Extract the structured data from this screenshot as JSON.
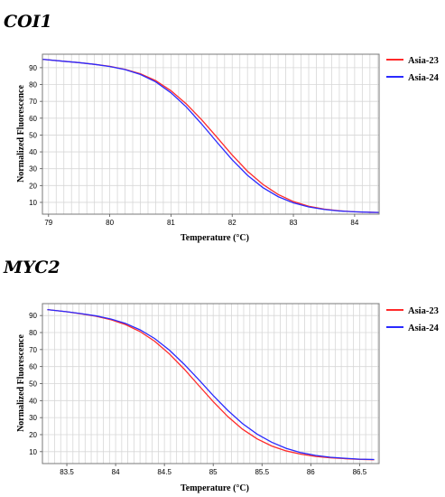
{
  "chart_data": [
    {
      "type": "line",
      "title": "COI1",
      "xlabel": "Temperature (°C)",
      "ylabel": "Normalized Fluorescence",
      "xlim": [
        78.9,
        84.4
      ],
      "ylim": [
        3,
        98
      ],
      "x_ticks": [
        79,
        80,
        81,
        82,
        83,
        84
      ],
      "x_tick_labels": [
        "79",
        "80",
        "81",
        "82",
        "83",
        "84"
      ],
      "y_ticks": [
        10,
        20,
        30,
        40,
        50,
        60,
        70,
        80,
        90
      ],
      "y_tick_labels": [
        "10",
        "20",
        "30",
        "40",
        "50",
        "60",
        "70",
        "80",
        "90"
      ],
      "grid": true,
      "legend_position": "right",
      "series": [
        {
          "name": "Asia-23",
          "color": "#ff2a2a",
          "x": [
            78.9,
            79.25,
            79.5,
            79.75,
            80.0,
            80.25,
            80.5,
            80.75,
            81.0,
            81.25,
            81.5,
            81.75,
            82.0,
            82.25,
            82.5,
            82.75,
            83.0,
            83.25,
            83.5,
            83.75,
            84.0,
            84.25,
            84.4
          ],
          "y": [
            95.0,
            93.8,
            93.0,
            92.0,
            90.8,
            89.0,
            86.4,
            82.3,
            76.3,
            68.5,
            59.1,
            48.7,
            38.1,
            28.5,
            20.7,
            14.7,
            10.5,
            7.7,
            6.0,
            5.0,
            4.4,
            4.1,
            4.0
          ]
        },
        {
          "name": "Asia-24",
          "color": "#2a2aff",
          "x": [
            78.9,
            79.25,
            79.5,
            79.75,
            80.0,
            80.25,
            80.5,
            80.75,
            81.0,
            81.25,
            81.5,
            81.75,
            82.0,
            82.25,
            82.5,
            82.75,
            83.0,
            83.25,
            83.5,
            83.75,
            84.0,
            84.25,
            84.4
          ],
          "y": [
            95.0,
            93.8,
            93.0,
            92.0,
            90.7,
            88.9,
            86.0,
            81.6,
            75.1,
            66.7,
            56.6,
            45.8,
            35.3,
            26.1,
            18.8,
            13.4,
            9.7,
            7.3,
            5.8,
            4.9,
            4.4,
            4.1,
            4.0
          ]
        }
      ]
    },
    {
      "type": "line",
      "title": "MYC2",
      "xlabel": "Temperature (°C)",
      "ylabel": "Normalized Fluorescence",
      "xlim": [
        83.25,
        86.7
      ],
      "ylim": [
        3,
        97
      ],
      "x_ticks": [
        83.5,
        84,
        84.5,
        85,
        85.5,
        86,
        86.5
      ],
      "x_tick_labels": [
        "83.5",
        "84",
        "84.5",
        "85",
        "85.5",
        "86",
        "86.5"
      ],
      "y_ticks": [
        10,
        20,
        30,
        40,
        50,
        60,
        70,
        80,
        90
      ],
      "y_tick_labels": [
        "10",
        "20",
        "30",
        "40",
        "50",
        "60",
        "70",
        "80",
        "90"
      ],
      "grid": true,
      "legend_position": "right",
      "series": [
        {
          "name": "Asia-23",
          "color": "#ff2a2a",
          "x": [
            83.3,
            83.5,
            83.65,
            83.8,
            83.95,
            84.1,
            84.25,
            84.4,
            84.55,
            84.7,
            84.85,
            85.0,
            85.15,
            85.3,
            85.45,
            85.6,
            85.75,
            85.9,
            86.05,
            86.2,
            86.35,
            86.5,
            86.65
          ],
          "y": [
            93.5,
            92.2,
            91.0,
            89.6,
            87.6,
            84.7,
            80.6,
            74.9,
            67.5,
            58.7,
            49.0,
            39.4,
            30.6,
            23.2,
            17.5,
            13.3,
            10.4,
            8.5,
            7.2,
            6.4,
            5.9,
            5.5,
            5.3
          ]
        },
        {
          "name": "Asia-24",
          "color": "#2a2aff",
          "x": [
            83.3,
            83.5,
            83.65,
            83.8,
            83.95,
            84.1,
            84.25,
            84.4,
            84.55,
            84.7,
            84.85,
            85.0,
            85.15,
            85.3,
            85.45,
            85.6,
            85.75,
            85.9,
            86.05,
            86.2,
            86.35,
            86.5,
            86.65
          ],
          "y": [
            93.5,
            92.2,
            91.1,
            89.8,
            88.0,
            85.4,
            81.6,
            76.5,
            69.7,
            61.5,
            52.4,
            43.0,
            34.2,
            26.5,
            20.3,
            15.5,
            11.9,
            9.4,
            7.8,
            6.7,
            6.1,
            5.6,
            5.4
          ]
        }
      ]
    }
  ]
}
